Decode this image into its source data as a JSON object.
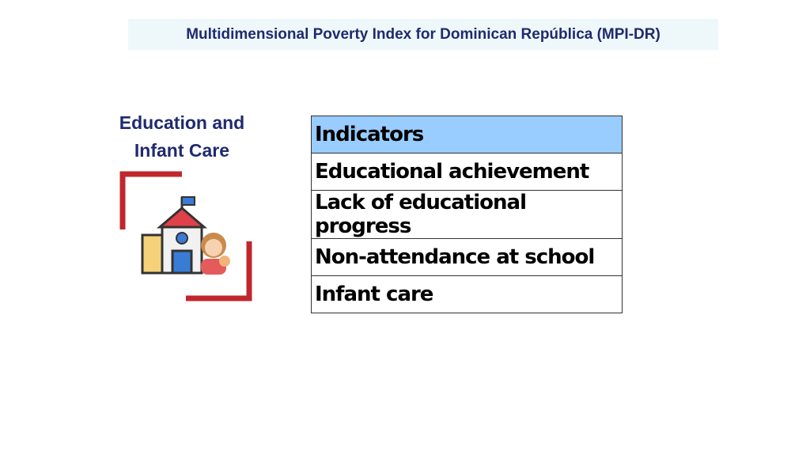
{
  "header": {
    "title": "Multidimensional Poverty Index for Dominican República (MPI-DR)"
  },
  "section": {
    "title_lines": [
      "Education and",
      "Infant Care"
    ]
  },
  "table": {
    "header": "Indicators",
    "rows": [
      "Educational achievement",
      "Lack of educational progress",
      "Non-attendance at school",
      "Infant care"
    ]
  }
}
